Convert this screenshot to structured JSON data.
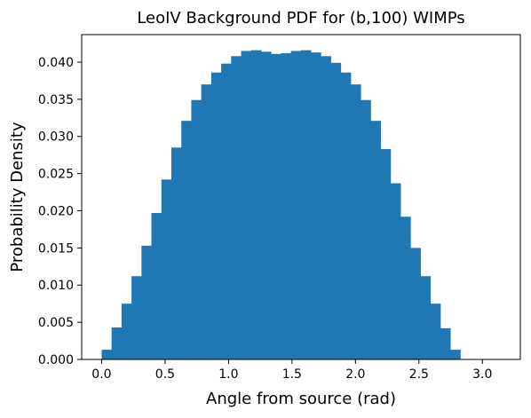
{
  "chart_data": {
    "type": "bar",
    "title": "LeoIV Background PDF for (b,100) WIMPs",
    "xlabel": "Angle from source (rad)",
    "ylabel": "Probability Density",
    "xlim": [
      -0.157,
      3.299
    ],
    "ylim": [
      0.0,
      0.0437
    ],
    "bar_color": "#1f77b4",
    "bin_start": 0.0,
    "bin_width": 0.0785,
    "values": [
      0.0013,
      0.0043,
      0.0075,
      0.0112,
      0.0153,
      0.0197,
      0.0242,
      0.0285,
      0.0321,
      0.0349,
      0.037,
      0.0386,
      0.0398,
      0.0408,
      0.0415,
      0.0416,
      0.0414,
      0.0411,
      0.0412,
      0.0415,
      0.0416,
      0.0413,
      0.0408,
      0.0399,
      0.0386,
      0.037,
      0.0349,
      0.0321,
      0.0283,
      0.0237,
      0.0192,
      0.015,
      0.0112,
      0.0075,
      0.0042,
      0.0013
    ],
    "x_ticks": [
      0.0,
      0.5,
      1.0,
      1.5,
      2.0,
      2.5,
      3.0
    ],
    "x_tick_labels": [
      "0.0",
      "0.5",
      "1.0",
      "1.5",
      "2.0",
      "2.5",
      "3.0"
    ],
    "y_ticks": [
      0.0,
      0.005,
      0.01,
      0.015,
      0.02,
      0.025,
      0.03,
      0.035,
      0.04
    ],
    "y_tick_labels": [
      "0.000",
      "0.005",
      "0.010",
      "0.015",
      "0.020",
      "0.025",
      "0.030",
      "0.035",
      "0.040"
    ],
    "grid": false,
    "legend": "none"
  }
}
